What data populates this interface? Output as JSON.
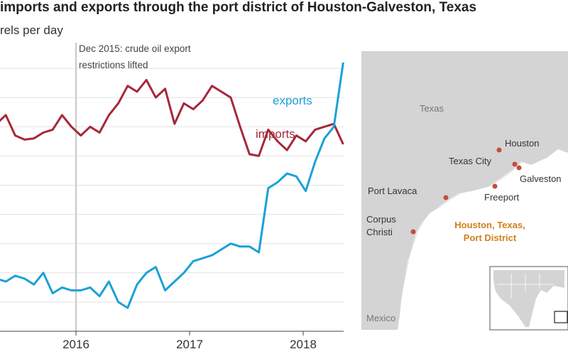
{
  "title": "imports and exports through the port district of Houston-Galveston, Texas",
  "subtitle": "rels per day",
  "chart_data": {
    "type": "line",
    "x_ticks": [
      "2016",
      "2017",
      "2018"
    ],
    "annotation": "Dec 2015: crude oil export restrictions lifted",
    "series": [
      {
        "name": "imports",
        "color": "#a6283a",
        "values": [
          55.5,
          57,
          53.5,
          52.8,
          53,
          54,
          54.5,
          57,
          55,
          53.5,
          55,
          54,
          57,
          59,
          62,
          61,
          63,
          60,
          61.5,
          55.5,
          59,
          58,
          59.5,
          62,
          61,
          60,
          55,
          50.3,
          50,
          54.5,
          52.5,
          51,
          53.5,
          52.5,
          54.5,
          55,
          55.5,
          52
        ]
      },
      {
        "name": "exports",
        "color": "#1aa1d8",
        "values": [
          29,
          28.5,
          29.5,
          29,
          28,
          30,
          26.5,
          27.5,
          27,
          27,
          27.5,
          26,
          28.5,
          25,
          24,
          28,
          30,
          31,
          27,
          28.5,
          30,
          32,
          32.5,
          33,
          34,
          35,
          34.5,
          34.5,
          33.5,
          44.5,
          45.5,
          47,
          46.5,
          44,
          49,
          53,
          55,
          66
        ]
      }
    ]
  },
  "map": {
    "state_label": "Texas",
    "country_label": "Mexico",
    "cities": [
      {
        "name": "Houston"
      },
      {
        "name": "Texas City"
      },
      {
        "name": "Galveston"
      },
      {
        "name": "Freeport"
      },
      {
        "name": "Port Lavaca"
      },
      {
        "name": "Corpus Christi"
      }
    ],
    "district_label": "Houston, Texas, Port District",
    "colors": {
      "land": "#d4d4d4",
      "water": "#ffffff",
      "marker": "#c0503a",
      "district_text": "#d0801a"
    }
  }
}
